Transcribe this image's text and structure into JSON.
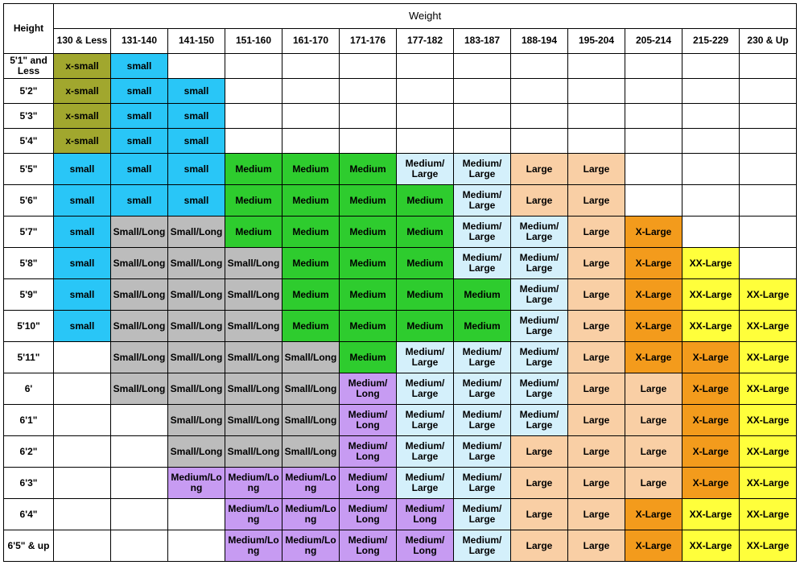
{
  "headers": {
    "weight_label": "Weight",
    "height_label": "Height",
    "weight_cols": [
      "130 & Less",
      "131-140",
      "141-150",
      "151-160",
      "161-170",
      "171-176",
      "177-182",
      "183-187",
      "188-194",
      "195-204",
      "205-214",
      "215-229",
      "230 & Up"
    ]
  },
  "heights": [
    "5'1\" and Less",
    "5'2\"",
    "5'3\"",
    "5'4\"",
    "5'5\"",
    "5'6\"",
    "5'7\"",
    "5'8\"",
    "5'9\"",
    "5'10\"",
    "5'11\"",
    "6'",
    "6'1\"",
    "6'2\"",
    "6'3\"",
    "6'4\"",
    "6'5\" & up"
  ],
  "colors": {
    "olive": "#a1a72e",
    "cyan": "#29c6f7",
    "gray": "#bcbcbc",
    "green": "#2ecc2e",
    "lightblue": "#d4f0fb",
    "purple": "#c79bf2",
    "peach": "#f9cfa5",
    "orange": "#f39b1c",
    "yellow": "#ffff3b",
    "white": "#ffffff"
  },
  "legend_map": {
    "xs": {
      "text": "x-small",
      "color": "olive"
    },
    "s": {
      "text": "small",
      "color": "cyan"
    },
    "sl": {
      "text": "Small/Long",
      "color": "gray"
    },
    "m": {
      "text": "Medium",
      "color": "green"
    },
    "ml": {
      "text": "Medium/ Large",
      "color": "lightblue"
    },
    "mlg": {
      "text": "Medium",
      "color": "lightblue"
    },
    "mlo": {
      "text": "Medium/Long",
      "color": "purple"
    },
    "mlo2": {
      "text": "Medium/ Long",
      "color": "purple"
    },
    "mlong": {
      "text": "Medium/Lo ng",
      "color": "purple"
    },
    "l": {
      "text": "Large",
      "color": "peach"
    },
    "xl": {
      "text": "X-Large",
      "color": "orange"
    },
    "xlo": {
      "text": "X-Large",
      "color": "orange"
    },
    "xx": {
      "text": "XX-Large",
      "color": "yellow"
    },
    "": {
      "text": "",
      "color": "white"
    }
  },
  "grid": [
    [
      "xs",
      "s",
      "",
      "",
      "",
      "",
      "",
      "",
      "",
      "",
      "",
      "",
      ""
    ],
    [
      "xs",
      "s",
      "s",
      "",
      "",
      "",
      "",
      "",
      "",
      "",
      "",
      "",
      ""
    ],
    [
      "xs",
      "s",
      "s",
      "",
      "",
      "",
      "",
      "",
      "",
      "",
      "",
      "",
      ""
    ],
    [
      "xs",
      "s",
      "s",
      "",
      "",
      "",
      "",
      "",
      "",
      "",
      "",
      "",
      ""
    ],
    [
      "s",
      "s",
      "s",
      "m",
      "m",
      "m",
      "ml",
      "ml",
      "l",
      "l",
      "",
      "",
      ""
    ],
    [
      "s",
      "s",
      "s",
      "m",
      "m",
      "m",
      "m",
      "ml",
      "l",
      "l",
      "",
      "",
      ""
    ],
    [
      "s",
      "sl",
      "sl",
      "m",
      "m",
      "m",
      "m",
      "ml",
      "ml",
      "l",
      "xl",
      "",
      ""
    ],
    [
      "s",
      "sl",
      "sl",
      "sl",
      "m",
      "m",
      "m",
      "ml",
      "ml",
      "l",
      "xl",
      "xx",
      ""
    ],
    [
      "s",
      "sl",
      "sl",
      "sl",
      "m",
      "m",
      "m",
      "m",
      "ml",
      "l",
      "xl",
      "xx",
      "xx"
    ],
    [
      "s",
      "sl",
      "sl",
      "sl",
      "m",
      "m",
      "m",
      "m",
      "ml",
      "l",
      "xl",
      "xx",
      "xx"
    ],
    [
      "",
      "sl",
      "sl",
      "sl",
      "sl",
      "m",
      "ml",
      "ml",
      "ml",
      "l",
      "xl",
      "xlo",
      "xx"
    ],
    [
      "",
      "sl",
      "sl",
      "sl",
      "sl",
      "mlo2",
      "ml",
      "ml",
      "ml",
      "l",
      "l",
      "xlo",
      "xx"
    ],
    [
      "",
      "",
      "sl",
      "sl",
      "sl",
      "mlo2",
      "ml",
      "ml",
      "ml",
      "l",
      "l",
      "xlo",
      "xx"
    ],
    [
      "",
      "",
      "sl",
      "sl",
      "sl",
      "mlo2",
      "ml",
      "ml",
      "l",
      "l",
      "l",
      "xlo",
      "xx"
    ],
    [
      "",
      "",
      "mlong",
      "mlo",
      "mlo",
      "mlo2",
      "ml",
      "ml",
      "l",
      "l",
      "l",
      "xlo",
      "xx"
    ],
    [
      "",
      "",
      "",
      "mlo",
      "mlo",
      "mlo2",
      "mlo2",
      "ml",
      "l",
      "l",
      "xl",
      "xx",
      "xx"
    ],
    [
      "",
      "",
      "",
      "mlo",
      "mlo",
      "mlo2",
      "mlo2",
      "ml",
      "l",
      "l",
      "xl",
      "xx",
      "xx"
    ]
  ],
  "row_heights_tall": [
    4,
    5,
    6,
    7,
    8,
    9,
    10,
    11,
    12,
    13,
    14,
    15,
    16
  ]
}
